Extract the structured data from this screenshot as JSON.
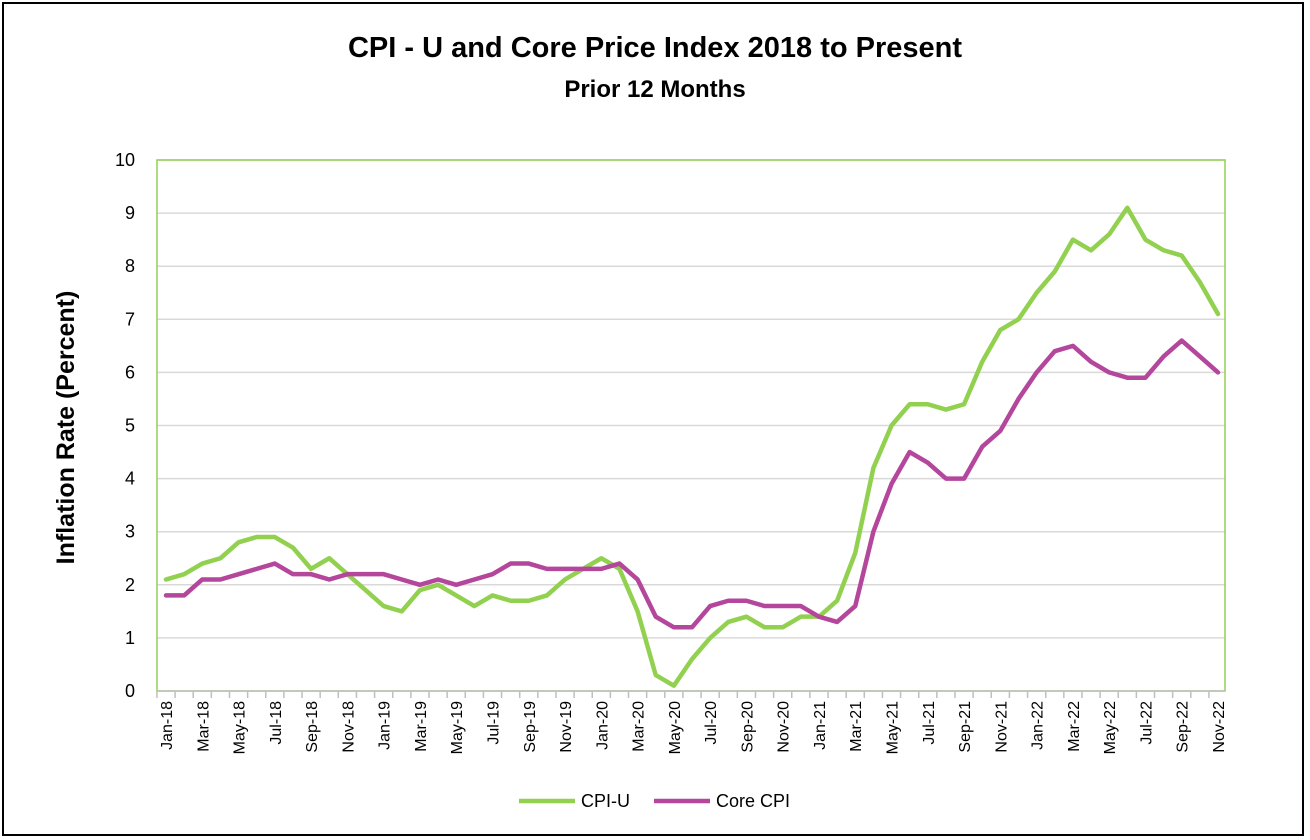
{
  "chart_data": {
    "type": "line",
    "title": "CPI - U and Core Price Index 2018 to Present",
    "subtitle": "Prior 12 Months",
    "ylabel": "Inflation Rate (Percent)",
    "xlabel": "",
    "ylim": [
      0,
      10
    ],
    "yticks": [
      0,
      1,
      2,
      3,
      4,
      5,
      6,
      7,
      8,
      9,
      10
    ],
    "grid": true,
    "legend_position": "bottom",
    "x": [
      "Jan-18",
      "Feb-18",
      "Mar-18",
      "Apr-18",
      "May-18",
      "Jun-18",
      "Jul-18",
      "Aug-18",
      "Sep-18",
      "Oct-18",
      "Nov-18",
      "Dec-18",
      "Jan-19",
      "Feb-19",
      "Mar-19",
      "Apr-19",
      "May-19",
      "Jun-19",
      "Jul-19",
      "Aug-19",
      "Sep-19",
      "Oct-19",
      "Nov-19",
      "Dec-19",
      "Jan-20",
      "Feb-20",
      "Mar-20",
      "Apr-20",
      "May-20",
      "Jun-20",
      "Jul-20",
      "Aug-20",
      "Sep-20",
      "Oct-20",
      "Nov-20",
      "Dec-20",
      "Jan-21",
      "Feb-21",
      "Mar-21",
      "Apr-21",
      "May-21",
      "Jun-21",
      "Jul-21",
      "Aug-21",
      "Sep-21",
      "Oct-21",
      "Nov-21",
      "Dec-21",
      "Jan-22",
      "Feb-22",
      "Mar-22",
      "Apr-22",
      "May-22",
      "Jun-22",
      "Jul-22",
      "Aug-22",
      "Sep-22",
      "Oct-22",
      "Nov-22"
    ],
    "x_tick_labels": [
      "Jan-18",
      "Mar-18",
      "May-18",
      "Jul-18",
      "Sep-18",
      "Nov-18",
      "Jan-19",
      "Mar-19",
      "May-19",
      "Jul-19",
      "Sep-19",
      "Nov-19",
      "Jan-20",
      "Mar-20",
      "May-20",
      "Jul-20",
      "Sep-20",
      "Nov-20",
      "Jan-21",
      "Mar-21",
      "May-21",
      "Jul-21",
      "Sep-21",
      "Nov-21",
      "Jan-22",
      "Mar-22",
      "May-22",
      "Jul-22",
      "Sep-22",
      "Nov-22"
    ],
    "series": [
      {
        "name": "CPI-U",
        "color": "#92d050",
        "values": [
          2.1,
          2.2,
          2.4,
          2.5,
          2.8,
          2.9,
          2.9,
          2.7,
          2.3,
          2.5,
          2.2,
          1.9,
          1.6,
          1.5,
          1.9,
          2.0,
          1.8,
          1.6,
          1.8,
          1.7,
          1.7,
          1.8,
          2.1,
          2.3,
          2.5,
          2.3,
          1.5,
          0.3,
          0.1,
          0.6,
          1.0,
          1.3,
          1.4,
          1.2,
          1.2,
          1.4,
          1.4,
          1.7,
          2.6,
          4.2,
          5.0,
          5.4,
          5.4,
          5.3,
          5.4,
          6.2,
          6.8,
          7.0,
          7.5,
          7.9,
          8.5,
          8.3,
          8.6,
          9.1,
          8.5,
          8.3,
          8.2,
          7.7,
          7.1
        ]
      },
      {
        "name": "Core CPI",
        "color": "#b4469c",
        "values": [
          1.8,
          1.8,
          2.1,
          2.1,
          2.2,
          2.3,
          2.4,
          2.2,
          2.2,
          2.1,
          2.2,
          2.2,
          2.2,
          2.1,
          2.0,
          2.1,
          2.0,
          2.1,
          2.2,
          2.4,
          2.4,
          2.3,
          2.3,
          2.3,
          2.3,
          2.4,
          2.1,
          1.4,
          1.2,
          1.2,
          1.6,
          1.7,
          1.7,
          1.6,
          1.6,
          1.6,
          1.4,
          1.3,
          1.6,
          3.0,
          3.9,
          4.5,
          4.3,
          4.0,
          4.0,
          4.6,
          4.9,
          5.5,
          6.0,
          6.4,
          6.5,
          6.2,
          6.0,
          5.9,
          5.9,
          6.3,
          6.6,
          6.3,
          6.0
        ]
      }
    ]
  }
}
